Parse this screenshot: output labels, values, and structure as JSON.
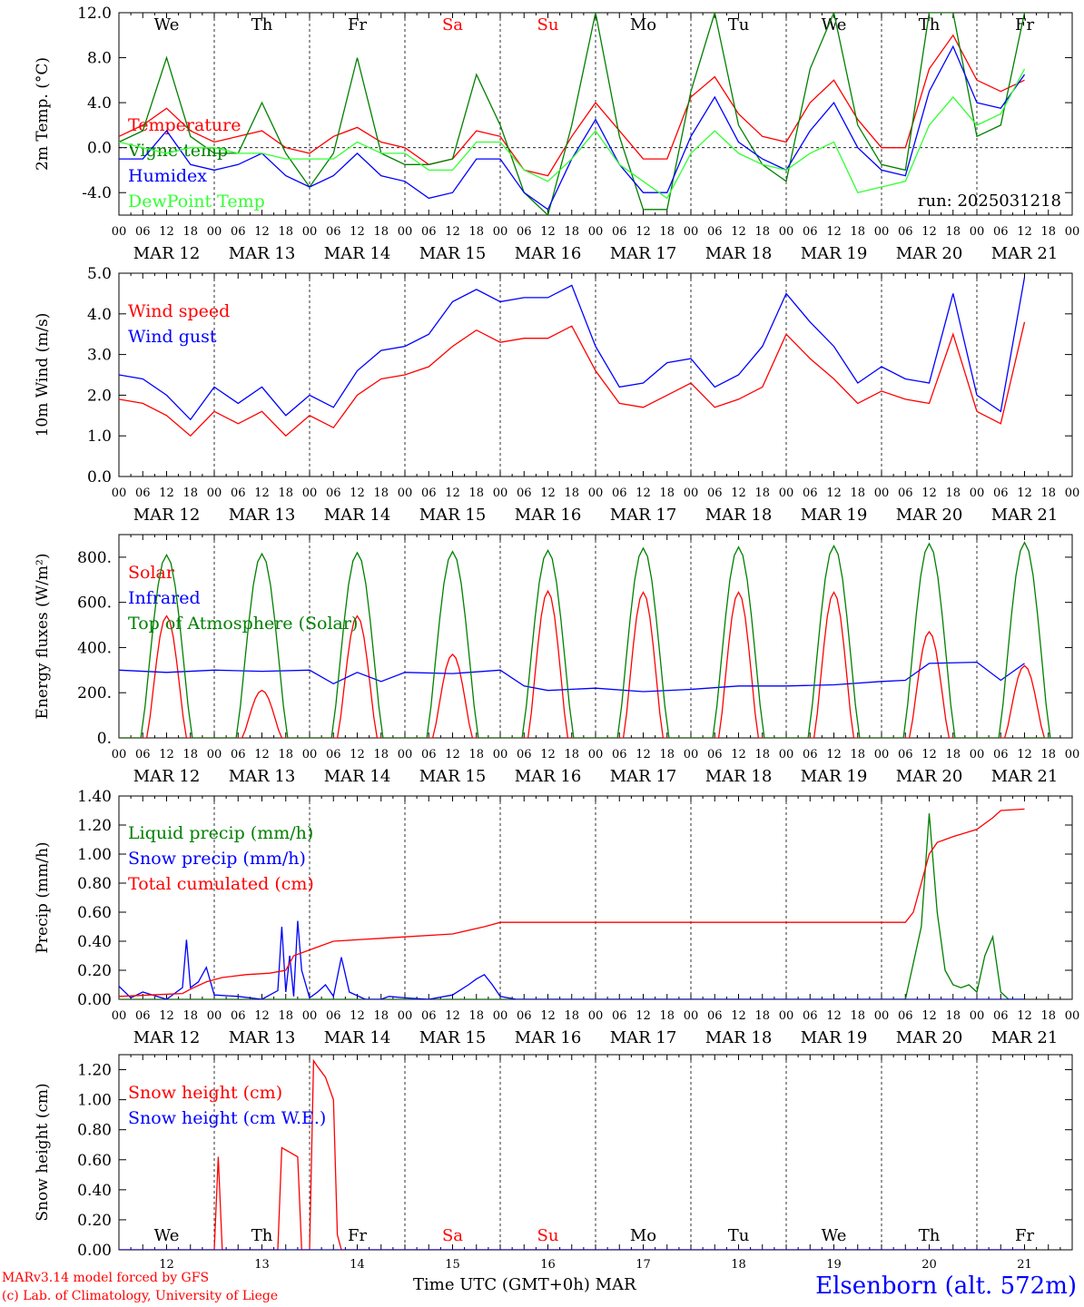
{
  "chart_data": [
    {
      "type": "line",
      "ylabel": "2m Temp. (°C)",
      "ylim": [
        -6,
        12
      ],
      "yticks": [
        "12.0",
        "8.0",
        "4.0",
        "0.0",
        "-4.0"
      ],
      "ytick_values": [
        12,
        8,
        4,
        0,
        -4
      ],
      "zero_line": true,
      "x_units": "hours since MAR 12 00 UTC",
      "annotation": "run: 2025031218",
      "series": [
        {
          "name": "Temperature",
          "color": "#ff0000",
          "x": [
            0,
            6,
            12,
            18,
            24,
            30,
            36,
            42,
            48,
            54,
            60,
            66,
            72,
            78,
            84,
            90,
            96,
            102,
            108,
            114,
            120,
            126,
            132,
            138,
            144,
            150,
            156,
            162,
            168,
            174,
            180,
            186,
            192,
            198,
            204,
            210,
            216,
            222,
            228
          ],
          "y": [
            1.0,
            2.0,
            3.5,
            1.5,
            0.5,
            1.0,
            1.5,
            0,
            -0.5,
            1.0,
            1.8,
            0.5,
            0,
            -1.5,
            -1.0,
            1.5,
            1.0,
            -2.0,
            -2.5,
            1.0,
            4.0,
            1.5,
            -1.0,
            -1.0,
            4.5,
            6.3,
            3.0,
            1.0,
            0.5,
            4.0,
            6.0,
            2.5,
            0,
            0,
            7.0,
            10.0,
            6.0,
            5.0,
            6.0
          ]
        },
        {
          "name": "Vigne temp",
          "color": "#008000",
          "x": [
            0,
            6,
            12,
            18,
            24,
            30,
            36,
            42,
            48,
            54,
            60,
            66,
            72,
            78,
            84,
            90,
            96,
            102,
            108,
            114,
            120,
            126,
            132,
            138,
            144,
            150,
            156,
            162,
            168,
            174,
            180,
            186,
            192,
            198,
            204,
            210,
            216,
            222,
            228
          ],
          "y": [
            0.5,
            1.5,
            8.0,
            1.0,
            -0.5,
            -0.5,
            4.0,
            -0.5,
            -3.5,
            -0.5,
            8.0,
            -0.5,
            -1.5,
            -1.5,
            -1.0,
            6.5,
            2.0,
            -4.0,
            -6.0,
            2.0,
            12.0,
            1.0,
            -5.5,
            -5.5,
            5.0,
            12.0,
            2.0,
            -1.5,
            -3.0,
            7.0,
            12.0,
            2.0,
            -1.5,
            -2.0,
            12.0,
            12.0,
            1.0,
            2.0,
            12.0
          ]
        },
        {
          "name": "Humidex",
          "color": "#0000ff",
          "x": [
            0,
            6,
            12,
            18,
            24,
            30,
            36,
            42,
            48,
            54,
            60,
            66,
            72,
            78,
            84,
            90,
            96,
            102,
            108,
            114,
            120,
            126,
            132,
            138,
            144,
            150,
            156,
            162,
            168,
            174,
            180,
            186,
            192,
            198,
            204,
            210,
            216,
            222,
            228
          ],
          "y": [
            -1.0,
            -1.0,
            1.5,
            -1.5,
            -2.0,
            -1.5,
            -0.5,
            -2.5,
            -3.5,
            -2.5,
            -0.5,
            -2.5,
            -3.0,
            -4.5,
            -4.0,
            -1.0,
            -1.0,
            -4.0,
            -5.5,
            -1.0,
            2.5,
            -1.5,
            -4.0,
            -4.0,
            1.0,
            4.5,
            0.5,
            -1.0,
            -2.0,
            1.5,
            4.0,
            0,
            -2.0,
            -2.5,
            5.0,
            9.0,
            4.0,
            3.5,
            6.5
          ]
        },
        {
          "name": "DewPoint Temp",
          "color": "#33ff33",
          "x": [
            0,
            6,
            12,
            18,
            24,
            30,
            36,
            42,
            48,
            54,
            60,
            66,
            72,
            78,
            84,
            90,
            96,
            102,
            108,
            114,
            120,
            126,
            132,
            138,
            144,
            150,
            156,
            162,
            168,
            174,
            180,
            186,
            192,
            198,
            204,
            210,
            216,
            222,
            228
          ],
          "y": [
            0.5,
            0,
            -0.5,
            0,
            0,
            -0.5,
            -0.5,
            -1.0,
            -1.0,
            -1.0,
            0.5,
            -0.5,
            -0.5,
            -2.0,
            -2.0,
            0.5,
            0.5,
            -2.0,
            -3.0,
            -1.0,
            1.5,
            -1.5,
            -3.0,
            -4.5,
            -0.5,
            1.5,
            -0.5,
            -1.5,
            -2.0,
            -0.5,
            0.5,
            -4.0,
            -3.5,
            -3.0,
            2.0,
            4.5,
            2.0,
            3.0,
            7.0
          ]
        }
      ]
    },
    {
      "type": "line",
      "ylabel": "10m Wind (m/s)",
      "ylim": [
        0,
        5
      ],
      "yticks": [
        "5.0",
        "4.0",
        "3.0",
        "2.0",
        "1.0",
        "0.0"
      ],
      "ytick_values": [
        5,
        4,
        3,
        2,
        1,
        0
      ],
      "series": [
        {
          "name": "Wind speed",
          "color": "#ff0000",
          "x": [
            0,
            6,
            12,
            18,
            24,
            30,
            36,
            42,
            48,
            54,
            60,
            66,
            72,
            78,
            84,
            90,
            96,
            102,
            108,
            114,
            120,
            126,
            132,
            138,
            144,
            150,
            156,
            162,
            168,
            174,
            180,
            186,
            192,
            198,
            204,
            210,
            216,
            222,
            228
          ],
          "y": [
            1.9,
            1.8,
            1.5,
            1.0,
            1.6,
            1.3,
            1.6,
            1.0,
            1.5,
            1.2,
            2.0,
            2.4,
            2.5,
            2.7,
            3.2,
            3.6,
            3.3,
            3.4,
            3.4,
            3.7,
            2.6,
            1.8,
            1.7,
            2.0,
            2.3,
            1.7,
            1.9,
            2.2,
            3.5,
            2.9,
            2.4,
            1.8,
            2.1,
            1.9,
            1.8,
            3.5,
            1.6,
            1.3,
            3.8
          ]
        },
        {
          "name": "Wind gust",
          "color": "#0000ff",
          "x": [
            0,
            6,
            12,
            18,
            24,
            30,
            36,
            42,
            48,
            54,
            60,
            66,
            72,
            78,
            84,
            90,
            96,
            102,
            108,
            114,
            120,
            126,
            132,
            138,
            144,
            150,
            156,
            162,
            168,
            174,
            180,
            186,
            192,
            198,
            204,
            210,
            216,
            222,
            228
          ],
          "y": [
            2.5,
            2.4,
            2.0,
            1.4,
            2.2,
            1.8,
            2.2,
            1.5,
            2.0,
            1.7,
            2.6,
            3.1,
            3.2,
            3.5,
            4.3,
            4.6,
            4.3,
            4.4,
            4.4,
            4.7,
            3.2,
            2.2,
            2.3,
            2.8,
            2.9,
            2.2,
            2.5,
            3.2,
            4.5,
            3.8,
            3.2,
            2.3,
            2.7,
            2.4,
            2.3,
            4.5,
            2.0,
            1.6,
            4.9
          ]
        }
      ]
    },
    {
      "type": "line",
      "ylabel": "Energy fluxes (W/m²)",
      "ylim": [
        0,
        900
      ],
      "yticks": [
        "800.",
        "600.",
        "400.",
        "200.",
        "0."
      ],
      "ytick_values": [
        800,
        600,
        400,
        200,
        0
      ],
      "series": [
        {
          "name": "Solar",
          "color": "#ff0000",
          "peaks": [
            {
              "x": 12,
              "y": 540
            },
            {
              "x": 36,
              "y": 210
            },
            {
              "x": 60,
              "y": 540
            },
            {
              "x": 84,
              "y": 370
            },
            {
              "x": 108,
              "y": 650
            },
            {
              "x": 132,
              "y": 645
            },
            {
              "x": 156,
              "y": 645
            },
            {
              "x": 180,
              "y": 645
            },
            {
              "x": 204,
              "y": 470
            },
            {
              "x": 228,
              "y": 320
            }
          ]
        },
        {
          "name": "Infrared",
          "color": "#0000ff",
          "x": [
            0,
            12,
            24,
            36,
            48,
            54,
            60,
            66,
            72,
            84,
            96,
            102,
            108,
            120,
            132,
            144,
            156,
            168,
            180,
            192,
            198,
            204,
            216,
            222,
            228
          ],
          "y": [
            300,
            290,
            300,
            295,
            300,
            240,
            290,
            250,
            290,
            285,
            300,
            230,
            210,
            220,
            205,
            215,
            230,
            230,
            235,
            250,
            255,
            330,
            335,
            255,
            330
          ]
        },
        {
          "name": "Top of Atmosphere (Solar)",
          "color": "#008000",
          "peaks": [
            {
              "x": 12,
              "y": 810
            },
            {
              "x": 36,
              "y": 815
            },
            {
              "x": 60,
              "y": 820
            },
            {
              "x": 84,
              "y": 825
            },
            {
              "x": 108,
              "y": 830
            },
            {
              "x": 132,
              "y": 840
            },
            {
              "x": 156,
              "y": 845
            },
            {
              "x": 180,
              "y": 850
            },
            {
              "x": 204,
              "y": 860
            },
            {
              "x": 228,
              "y": 865
            }
          ]
        }
      ]
    },
    {
      "type": "line",
      "ylabel": "Precip (mm/h)",
      "ylim": [
        0,
        1.4
      ],
      "yticks": [
        "1.40",
        "1.20",
        "1.00",
        "0.80",
        "0.60",
        "0.40",
        "0.20",
        "0.00"
      ],
      "ytick_values": [
        1.4,
        1.2,
        1.0,
        0.8,
        0.6,
        0.4,
        0.2,
        0
      ],
      "series": [
        {
          "name": "Liquid precip (mm/h)",
          "color": "#008000",
          "x": [
            0,
            198,
            202,
            204,
            206,
            208,
            210,
            212,
            214,
            216,
            218,
            220,
            222,
            224,
            228
          ],
          "y": [
            0,
            0,
            0.5,
            1.28,
            0.6,
            0.2,
            0.1,
            0.08,
            0.1,
            0.05,
            0.3,
            0.43,
            0.05,
            0,
            0
          ]
        },
        {
          "name": "Snow precip (mm/h)",
          "color": "#0000ff",
          "x": [
            0,
            3,
            6,
            12,
            16,
            17,
            18,
            20,
            22,
            24,
            30,
            36,
            40,
            41,
            42,
            43,
            44,
            45,
            46,
            48,
            50,
            52,
            54,
            56,
            58,
            62,
            66,
            68,
            72,
            78,
            84,
            88,
            90,
            92,
            94,
            96,
            100,
            228
          ],
          "y": [
            0.09,
            0.01,
            0.05,
            0,
            0.08,
            0.41,
            0.08,
            0.12,
            0.22,
            0.03,
            0.02,
            0,
            0.06,
            0.5,
            0.05,
            0.3,
            0.02,
            0.54,
            0.2,
            0.01,
            0.05,
            0.1,
            0.02,
            0.29,
            0.05,
            0,
            0,
            0.02,
            0.01,
            0,
            0.03,
            0.1,
            0.14,
            0.17,
            0.1,
            0.02,
            0,
            0
          ]
        },
        {
          "name": "Total cumulated (cm)",
          "color": "#ff0000",
          "x": [
            0,
            8,
            16,
            18,
            22,
            26,
            32,
            38,
            42,
            44,
            48,
            50,
            54,
            60,
            66,
            72,
            84,
            92,
            96,
            198,
            200,
            202,
            204,
            206,
            208,
            210,
            216,
            220,
            222,
            228
          ],
          "y": [
            0.02,
            0.03,
            0.04,
            0.07,
            0.12,
            0.15,
            0.17,
            0.18,
            0.2,
            0.3,
            0.34,
            0.36,
            0.4,
            0.41,
            0.42,
            0.43,
            0.45,
            0.5,
            0.53,
            0.53,
            0.6,
            0.8,
            1.0,
            1.08,
            1.1,
            1.12,
            1.17,
            1.25,
            1.3,
            1.31
          ]
        }
      ]
    },
    {
      "type": "line",
      "ylabel": "Snow height (cm)",
      "ylim": [
        0,
        1.3
      ],
      "yticks": [
        "1.20",
        "1.00",
        "0.80",
        "0.60",
        "0.40",
        "0.20",
        "0.00"
      ],
      "ytick_values": [
        1.2,
        1.0,
        0.8,
        0.6,
        0.4,
        0.2,
        0
      ],
      "series": [
        {
          "name": "Snow height (cm)",
          "color": "#ff0000",
          "x": [
            0,
            24,
            25,
            26,
            40,
            41,
            45,
            46,
            48,
            49,
            50,
            52,
            54,
            55,
            56,
            228
          ],
          "y": [
            0,
            0,
            0.62,
            0,
            0,
            0.68,
            0.62,
            0,
            0,
            1.26,
            1.22,
            1.15,
            1.0,
            0.1,
            0,
            0
          ]
        },
        {
          "name": "Snow height (cm W.E.)",
          "color": "#0000ff",
          "x": [
            0,
            228
          ],
          "y": [
            0,
            0
          ]
        }
      ]
    }
  ],
  "axis": {
    "hour_ticks": [
      "00",
      "06",
      "12",
      "18"
    ],
    "final_tick": "00",
    "date_labels": [
      "MAR 12",
      "MAR 13",
      "MAR 14",
      "MAR 15",
      "MAR 16",
      "MAR 17",
      "MAR 18",
      "MAR 19",
      "MAR 20",
      "MAR 21"
    ],
    "weekdays": [
      {
        "label": "We",
        "color": "#000000"
      },
      {
        "label": "Th",
        "color": "#000000"
      },
      {
        "label": "Fr",
        "color": "#000000"
      },
      {
        "label": "Sa",
        "color": "#ff0000"
      },
      {
        "label": "Su",
        "color": "#ff0000"
      },
      {
        "label": "Mo",
        "color": "#000000"
      },
      {
        "label": "Tu",
        "color": "#000000"
      },
      {
        "label": "We",
        "color": "#000000"
      },
      {
        "label": "Th",
        "color": "#000000"
      },
      {
        "label": "Fr",
        "color": "#000000"
      }
    ],
    "day_numbers": [
      "12",
      "13",
      "14",
      "15",
      "16",
      "17",
      "18",
      "19",
      "20",
      "21"
    ],
    "bottom_label": "Time UTC (GMT+0h)",
    "bottom_month": "MAR"
  },
  "footer": {
    "model_line": "MARv3.14 model forced by GFS",
    "credit_line": "(c) Lab. of Climatology, University of Liege",
    "station": "Elsenborn (alt. 572m)"
  }
}
